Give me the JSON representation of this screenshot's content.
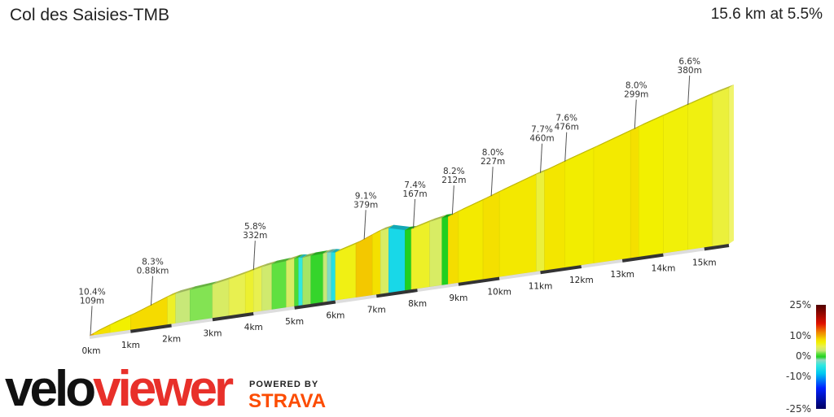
{
  "header": {
    "title": "Col des Saisies-TMB",
    "summary": "15.6 km at 5.5%"
  },
  "branding": {
    "logo_text_1": "velo",
    "logo_text_2": "viewer",
    "powered_by": "POWERED BY",
    "strava": "STRAVA",
    "strava_color": "#fc4c02",
    "logo_accent": "#e8302a"
  },
  "chart_data": {
    "type": "area",
    "title": "Col des Saisies-TMB",
    "total_distance_km": 15.6,
    "average_gradient_pct": 5.5,
    "x_unit": "km",
    "x_ticks": [
      "0km",
      "1km",
      "2km",
      "3km",
      "4km",
      "5km",
      "6km",
      "7km",
      "8km",
      "9km",
      "10km",
      "11km",
      "12km",
      "13km",
      "14km",
      "15km"
    ],
    "segments": [
      [
        0,
        0.1,
        10.4
      ],
      [
        0.1,
        0.5,
        8
      ],
      [
        0.5,
        1.0,
        7
      ],
      [
        1.0,
        1.9,
        8.3
      ],
      [
        1.9,
        2.1,
        6
      ],
      [
        2.1,
        2.45,
        3
      ],
      [
        2.45,
        3.0,
        2
      ],
      [
        3.0,
        3.4,
        4
      ],
      [
        3.4,
        3.8,
        5
      ],
      [
        3.8,
        4.0,
        5.8
      ],
      [
        4.0,
        4.2,
        5
      ],
      [
        4.2,
        4.45,
        3.5
      ],
      [
        4.45,
        4.8,
        1.5
      ],
      [
        4.8,
        5.0,
        4
      ],
      [
        5.0,
        5.1,
        1
      ],
      [
        5.1,
        5.2,
        -4
      ],
      [
        5.2,
        5.4,
        2.5
      ],
      [
        5.4,
        5.7,
        0.5
      ],
      [
        5.7,
        5.8,
        3
      ],
      [
        5.8,
        5.9,
        -2
      ],
      [
        5.9,
        6.0,
        -5
      ],
      [
        6.0,
        6.5,
        6.5
      ],
      [
        6.5,
        6.9,
        9.1
      ],
      [
        6.9,
        7.1,
        8
      ],
      [
        7.1,
        7.3,
        4
      ],
      [
        7.3,
        7.7,
        -6
      ],
      [
        7.7,
        7.85,
        0
      ],
      [
        7.85,
        8.3,
        6
      ],
      [
        8.3,
        8.6,
        4
      ],
      [
        8.6,
        8.75,
        0
      ],
      [
        8.75,
        9.0,
        8.2
      ],
      [
        9.0,
        9.6,
        7.4
      ],
      [
        9.6,
        10.0,
        8.0
      ],
      [
        10.0,
        10.9,
        7.5
      ],
      [
        10.9,
        11.1,
        5.5
      ],
      [
        11.1,
        11.6,
        7.6
      ],
      [
        11.6,
        12.3,
        7.2
      ],
      [
        12.3,
        13.2,
        7.4
      ],
      [
        13.2,
        13.4,
        8.0
      ],
      [
        13.4,
        14.0,
        7.0
      ],
      [
        14.0,
        14.6,
        6.8
      ],
      [
        14.6,
        15.2,
        6.6
      ],
      [
        15.2,
        15.6,
        5.5
      ]
    ],
    "annotations": [
      {
        "km": 0.02,
        "gradient": "10.4%",
        "length": "109m"
      },
      {
        "km": 1.5,
        "gradient": "8.3%",
        "length": "0.88km"
      },
      {
        "km": 4.0,
        "gradient": "5.8%",
        "length": "332m"
      },
      {
        "km": 6.7,
        "gradient": "9.1%",
        "length": "379m"
      },
      {
        "km": 7.9,
        "gradient": "7.4%",
        "length": "167m"
      },
      {
        "km": 8.85,
        "gradient": "8.2%",
        "length": "212m"
      },
      {
        "km": 9.8,
        "gradient": "8.0%",
        "length": "227m"
      },
      {
        "km": 11.0,
        "gradient": "7.7%",
        "length": "460m"
      },
      {
        "km": 11.6,
        "gradient": "7.6%",
        "length": "476m"
      },
      {
        "km": 13.3,
        "gradient": "8.0%",
        "length": "299m"
      },
      {
        "km": 14.6,
        "gradient": "6.6%",
        "length": "380m"
      }
    ],
    "legend": {
      "labels": [
        "25%",
        "10%",
        "0%",
        "-10%",
        "-25%"
      ],
      "colorscale": [
        [
          -25,
          "#000060"
        ],
        [
          -15,
          "#0020ff"
        ],
        [
          -8,
          "#00c8f0"
        ],
        [
          -4,
          "#30e8e0"
        ],
        [
          -1.5,
          "#90d8c0"
        ],
        [
          0,
          "#20d020"
        ],
        [
          1.5,
          "#60e040"
        ],
        [
          3,
          "#c8e878"
        ],
        [
          5,
          "#e8f050"
        ],
        [
          7,
          "#f2f000"
        ],
        [
          8.5,
          "#f5d800"
        ],
        [
          10,
          "#f0b000"
        ],
        [
          12,
          "#f08000"
        ],
        [
          16,
          "#e01000"
        ],
        [
          25,
          "#500000"
        ]
      ]
    }
  }
}
